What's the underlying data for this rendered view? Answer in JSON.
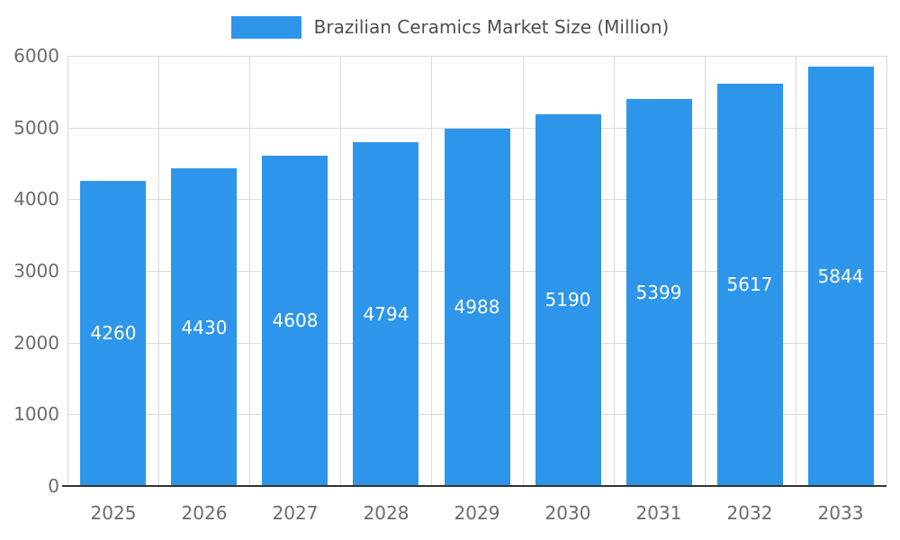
{
  "chart_data": {
    "type": "bar",
    "title": "Brazilian Ceramics Market Size (Million)",
    "categories": [
      "2025",
      "2026",
      "2027",
      "2028",
      "2029",
      "2030",
      "2031",
      "2032",
      "2033"
    ],
    "values": [
      4260,
      4430,
      4608,
      4794,
      4988,
      5190,
      5399,
      5617,
      5844
    ],
    "xlabel": "",
    "ylabel": "",
    "ylim": [
      0,
      6000
    ],
    "y_ticks": [
      0,
      1000,
      2000,
      3000,
      4000,
      5000,
      6000
    ],
    "grid": true,
    "legend_position": "top",
    "bar_color": "#2e96ea",
    "value_label_color": "#ffffff",
    "axis_text_color": "#6b6b6b",
    "grid_color": "#d9d9d9",
    "axis_line_color": "#333333",
    "background_color": "#ffffff"
  }
}
